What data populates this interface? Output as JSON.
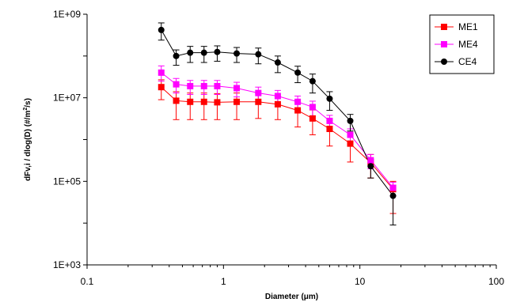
{
  "chart_data": {
    "type": "line",
    "title": "",
    "xlabel": "Diameter (μm)",
    "ylabel_parts": [
      "dFv,i / dlog(D)  (#/m",
      "2",
      "/s)"
    ],
    "x_scale": "log",
    "y_scale": "log",
    "xlim": [
      0.1,
      100
    ],
    "ylim": [
      1000,
      1000000000
    ],
    "x_ticks": [
      0.1,
      1,
      10,
      100
    ],
    "x_tick_labels": [
      "0.1",
      "1",
      "10",
      "100"
    ],
    "y_ticks": [
      1000,
      100000,
      10000000,
      1000000000
    ],
    "y_tick_labels": [
      "1E+03",
      "1E+05",
      "1E+07",
      "1E+09"
    ],
    "grid": false,
    "legend_position": "top-right",
    "x": [
      0.35,
      0.45,
      0.57,
      0.72,
      0.9,
      1.25,
      1.8,
      2.5,
      3.5,
      4.5,
      6,
      8.5,
      12,
      17.5
    ],
    "series": [
      {
        "name": "ME1",
        "color": "#ff0000",
        "marker": "square",
        "values": [
          18000000,
          8500000,
          8000000,
          8000000,
          7800000,
          8000000,
          8000000,
          7000000,
          5000000,
          3200000,
          1800000,
          800000,
          280000,
          65000
        ],
        "err_low": [
          9000000,
          5500000,
          5000000,
          5000000,
          4800000,
          5000000,
          4800000,
          4000000,
          3000000,
          1900000,
          1100000,
          510000,
          160000,
          48000
        ],
        "err_high": [
          9000000,
          5500000,
          5000000,
          5000000,
          4800000,
          5000000,
          4800000,
          4000000,
          3000000,
          1900000,
          1100000,
          510000,
          160000,
          35000
        ]
      },
      {
        "name": "ME4",
        "color": "#ff00ff",
        "marker": "square",
        "values": [
          40000000,
          21000000,
          19000000,
          19000000,
          19000000,
          17000000,
          13000000,
          11000000,
          8000000,
          6000000,
          2800000,
          1300000,
          320000,
          70000
        ],
        "err_low": [
          15000000,
          8000000,
          7000000,
          7000000,
          7000000,
          6500000,
          5000000,
          4000000,
          3000000,
          2300000,
          1000000,
          500000,
          120000,
          25000
        ],
        "err_high": [
          18000000,
          8000000,
          7000000,
          7000000,
          7000000,
          6500000,
          5000000,
          4000000,
          3000000,
          2300000,
          1000000,
          500000,
          120000,
          25000
        ]
      },
      {
        "name": "CE4",
        "color": "#000000",
        "marker": "circle",
        "values": [
          420000000,
          100000000,
          120000000,
          120000000,
          125000000,
          115000000,
          110000000,
          70000000,
          40000000,
          25000000,
          9500000,
          2800000,
          230000,
          45000
        ],
        "err_low": [
          180000000,
          40000000,
          50000000,
          50000000,
          50000000,
          45000000,
          45000000,
          30000000,
          17000000,
          12000000,
          4500000,
          1200000,
          110000,
          36000
        ],
        "err_high": [
          200000000,
          40000000,
          50000000,
          50000000,
          50000000,
          45000000,
          45000000,
          30000000,
          17000000,
          12000000,
          4500000,
          1200000,
          110000,
          36000
        ]
      }
    ]
  }
}
